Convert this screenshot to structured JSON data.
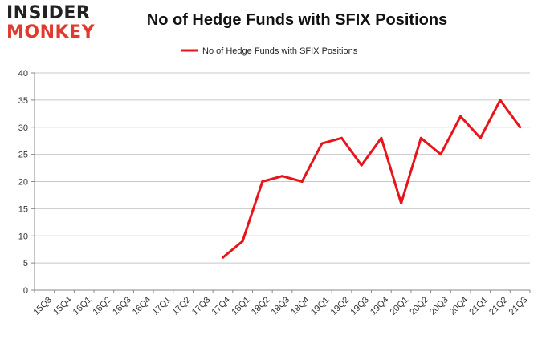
{
  "logo": {
    "line1": "INSIDER",
    "line2": "MONKEY"
  },
  "colors": {
    "series": "#e8141b",
    "grid": "#c8c8c8",
    "axis": "#888888"
  },
  "chart_data": {
    "type": "line",
    "title": "No of Hedge Funds with SFIX Positions",
    "xlabel": "",
    "ylabel": "",
    "ylim": [
      0,
      40
    ],
    "yticks": [
      0,
      5,
      10,
      15,
      20,
      25,
      30,
      35,
      40
    ],
    "grid": true,
    "legend_position": "top-center",
    "categories": [
      "15Q3",
      "15Q4",
      "16Q1",
      "16Q2",
      "16Q3",
      "16Q4",
      "17Q1",
      "17Q2",
      "17Q3",
      "17Q4",
      "18Q1",
      "18Q2",
      "18Q3",
      "18Q4",
      "19Q1",
      "19Q2",
      "19Q3",
      "19Q4",
      "20Q1",
      "20Q2",
      "20Q3",
      "20Q4",
      "21Q1",
      "21Q2",
      "21Q3"
    ],
    "series": [
      {
        "name": "No of Hedge Funds with SFIX Positions",
        "values": [
          null,
          null,
          null,
          null,
          null,
          null,
          null,
          null,
          null,
          6,
          9,
          20,
          21,
          20,
          27,
          28,
          23,
          28,
          16,
          28,
          25,
          32,
          28,
          35,
          30
        ]
      }
    ]
  }
}
